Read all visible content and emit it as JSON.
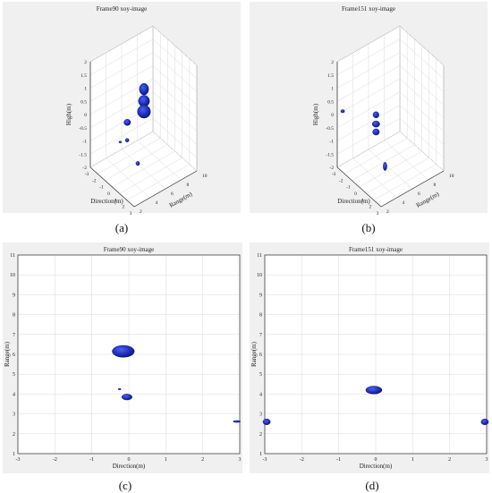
{
  "captions": [
    "(a)",
    "(b)",
    "(c)",
    "(d)"
  ],
  "colors": {
    "blob": "#1f2eb8",
    "blob_dark": "#0a1170",
    "grid": "#d9d9d9",
    "axis": "#333333",
    "background": "#ffffff",
    "figure_bg": "#f0f0f0"
  },
  "chart_data": [
    {
      "type": "scatter",
      "projection": "3d",
      "title": "Frame90 xoy-image",
      "xlabel": "Direction(m)",
      "ylabel": "Range(m)",
      "zlabel": "High(m)",
      "xlim": [
        -3,
        3
      ],
      "ylim": [
        2,
        10
      ],
      "zlim": [
        -2,
        2
      ],
      "xticks": [
        "-3",
        "-2",
        "-1",
        "0",
        "1",
        "2",
        "3"
      ],
      "yticks": [
        "2",
        "4",
        "6",
        "8",
        "10"
      ],
      "zticks": [
        "-2",
        "-1.5",
        "-1",
        "-0.5",
        "0",
        "0.5",
        "1",
        "1.5",
        "2"
      ],
      "grid": true,
      "blobs": [
        {
          "x": -0.05,
          "y": 6.1,
          "z": 1.0,
          "rx": 0.25,
          "rz": 0.22
        },
        {
          "x": -0.05,
          "y": 6.1,
          "z": 0.55,
          "rx": 0.3,
          "rz": 0.22
        },
        {
          "x": -0.05,
          "y": 6.1,
          "z": 0.15,
          "rx": 0.35,
          "rz": 0.25
        },
        {
          "x": -0.3,
          "y": 4.2,
          "z": 0.0,
          "rx": 0.18,
          "rz": 0.12
        },
        {
          "x": 0.0,
          "y": 3.9,
          "z": -0.55,
          "rx": 0.1,
          "rz": 0.07
        },
        {
          "x": 2.85,
          "y": 2.6,
          "z": -0.5,
          "rx": 0.1,
          "rz": 0.08
        },
        {
          "x": -0.2,
          "y": 3.2,
          "z": -0.55,
          "rx": 0.05,
          "rz": 0.04
        }
      ]
    },
    {
      "type": "scatter",
      "projection": "3d",
      "title": "Frame151 xoy-image",
      "xlabel": "Direction(m)",
      "ylabel": "Range(m)",
      "zlabel": "High(m)",
      "xlim": [
        -3,
        3
      ],
      "ylim": [
        2,
        10
      ],
      "zlim": [
        -2,
        2
      ],
      "xticks": [
        "-3",
        "-2",
        "-1",
        "0",
        "1",
        "2",
        "3"
      ],
      "yticks": [
        "2",
        "4",
        "6",
        "8",
        "10"
      ],
      "zticks": [
        "-2",
        "-1.5",
        "-1",
        "-0.5",
        "0",
        "0.5",
        "1",
        "1.5",
        "2"
      ],
      "grid": true,
      "blobs": [
        {
          "x": -0.05,
          "y": 4.2,
          "z": 0.35,
          "rx": 0.16,
          "rz": 0.12
        },
        {
          "x": -0.05,
          "y": 4.2,
          "z": 0.0,
          "rx": 0.2,
          "rz": 0.12
        },
        {
          "x": -0.05,
          "y": 4.2,
          "z": -0.3,
          "rx": 0.18,
          "rz": 0.12
        },
        {
          "x": -2.9,
          "y": 2.6,
          "z": 0.05,
          "rx": 0.1,
          "rz": 0.06
        },
        {
          "x": 2.9,
          "y": 2.6,
          "z": -0.6,
          "rx": 0.1,
          "rz": 0.16
        }
      ]
    },
    {
      "type": "scatter",
      "title": "Frame90 xoy-image",
      "xlabel": "Direction(m)",
      "ylabel": "Range(m)",
      "xlim": [
        -3,
        3
      ],
      "ylim": [
        1,
        11
      ],
      "xticks": [
        -3,
        -2,
        -1,
        0,
        1,
        2,
        3
      ],
      "yticks": [
        1,
        2,
        3,
        4,
        5,
        6,
        7,
        8,
        9,
        10,
        11
      ],
      "grid": true,
      "blobs": [
        {
          "x": -0.15,
          "y": 6.15,
          "rx": 0.3,
          "ry": 0.3
        },
        {
          "x": -0.05,
          "y": 3.85,
          "rx": 0.14,
          "ry": 0.15
        },
        {
          "x": -0.25,
          "y": 4.25,
          "rx": 0.04,
          "ry": 0.04
        },
        {
          "x": 2.92,
          "y": 2.62,
          "rx": 0.1,
          "ry": 0.05
        }
      ]
    },
    {
      "type": "scatter",
      "title": "Frame151 xoy-image",
      "xlabel": "Direction(m)",
      "ylabel": "Range(m)",
      "xlim": [
        -3,
        3
      ],
      "ylim": [
        1,
        11
      ],
      "xticks": [
        -3,
        -2,
        -1,
        0,
        1,
        2,
        3
      ],
      "yticks": [
        1,
        2,
        3,
        4,
        5,
        6,
        7,
        8,
        9,
        10,
        11
      ],
      "grid": true,
      "blobs": [
        {
          "x": -0.05,
          "y": 4.2,
          "rx": 0.22,
          "ry": 0.2
        },
        {
          "x": -2.95,
          "y": 2.6,
          "rx": 0.1,
          "ry": 0.15
        },
        {
          "x": 2.95,
          "y": 2.6,
          "rx": 0.1,
          "ry": 0.15
        }
      ]
    }
  ]
}
